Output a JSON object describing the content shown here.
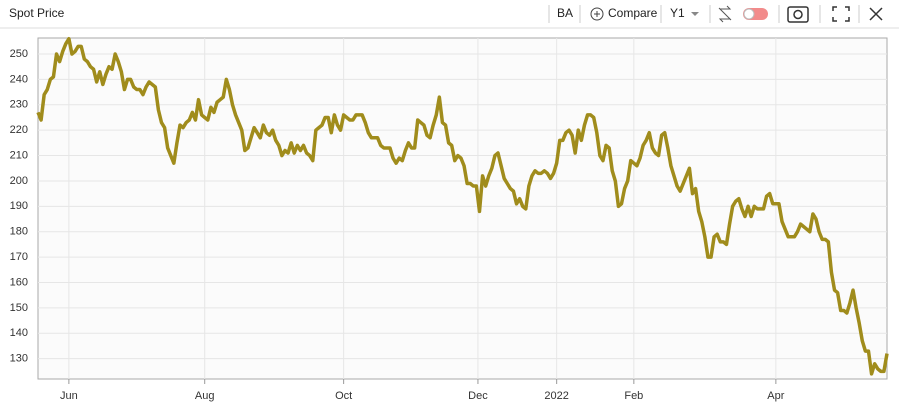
{
  "toolbar": {
    "title": "Spot Price",
    "symbol": "BA",
    "compare": "Compare",
    "period": "Y1"
  },
  "chart_data": {
    "type": "line",
    "color": "#a08c1c",
    "grid": true,
    "values": [
      227,
      224,
      234,
      236,
      240,
      241,
      250,
      247,
      251,
      254,
      256,
      250,
      251,
      253,
      253,
      248,
      247,
      245,
      244,
      239,
      243,
      238,
      242,
      245,
      244,
      250,
      247,
      243,
      236,
      240,
      240,
      237,
      236,
      236,
      234,
      237,
      239,
      238,
      237,
      228,
      223,
      221,
      213,
      210,
      207,
      215,
      222,
      221,
      223,
      224,
      227,
      224,
      232,
      226,
      225,
      224,
      229,
      227,
      231,
      232,
      233,
      240,
      236,
      230,
      226,
      223,
      220,
      212,
      213,
      217,
      221,
      219,
      217,
      222,
      219,
      218,
      220,
      216,
      214,
      210,
      212,
      211,
      215,
      211,
      214,
      212,
      214,
      211,
      210,
      208,
      220,
      221,
      222,
      225,
      225,
      219,
      226,
      222,
      220,
      226,
      225,
      224,
      224,
      226,
      226,
      226,
      223,
      219,
      217,
      217,
      217,
      214,
      213,
      213,
      213,
      209,
      207,
      209,
      208,
      212,
      215,
      213,
      213,
      224,
      223,
      222,
      218,
      217,
      222,
      226,
      233,
      223,
      222,
      215,
      214,
      208,
      210,
      209,
      206,
      199,
      199,
      198,
      198,
      188,
      202,
      198,
      202,
      205,
      210,
      211,
      206,
      201,
      199,
      197,
      196,
      191,
      193,
      190,
      189,
      198,
      202,
      204,
      203,
      203,
      204,
      203,
      201,
      203,
      207,
      216,
      216,
      219,
      220,
      218,
      211,
      220,
      216,
      222,
      226,
      226,
      225,
      219,
      210,
      208,
      214,
      213,
      204,
      200,
      190,
      191,
      197,
      200,
      208,
      207,
      206,
      209,
      214,
      216,
      219,
      213,
      211,
      210,
      218,
      219,
      213,
      206,
      202,
      198,
      196,
      199,
      202,
      205,
      195,
      197,
      188,
      184,
      178,
      170,
      170,
      178,
      179,
      176,
      176,
      175,
      183,
      190,
      192,
      193,
      189,
      186,
      190,
      186,
      190,
      189,
      189,
      189,
      194,
      195,
      191,
      191,
      191,
      184,
      181,
      178,
      178,
      178,
      180,
      183,
      182,
      181,
      180,
      187,
      185,
      180,
      177,
      177,
      176,
      164,
      157,
      156,
      149,
      149,
      148,
      152,
      157,
      150,
      144,
      137,
      133,
      133,
      124,
      128,
      126,
      125,
      125,
      132
    ],
    "xlim": [
      0,
      275
    ],
    "xticks": [
      {
        "value": 10,
        "label": "Jun"
      },
      {
        "value": 54,
        "label": "Aug"
      },
      {
        "value": 99,
        "label": "Oct"
      },
      {
        "value": 142.5,
        "label": "Dec"
      },
      {
        "value": 168,
        "label": "2022"
      },
      {
        "value": 193,
        "label": "Feb"
      },
      {
        "value": 239,
        "label": "Apr"
      }
    ],
    "ylim": [
      122,
      256.3
    ],
    "yticks": [
      130,
      140,
      150,
      160,
      170,
      180,
      190,
      200,
      210,
      220,
      230,
      240,
      250
    ]
  }
}
